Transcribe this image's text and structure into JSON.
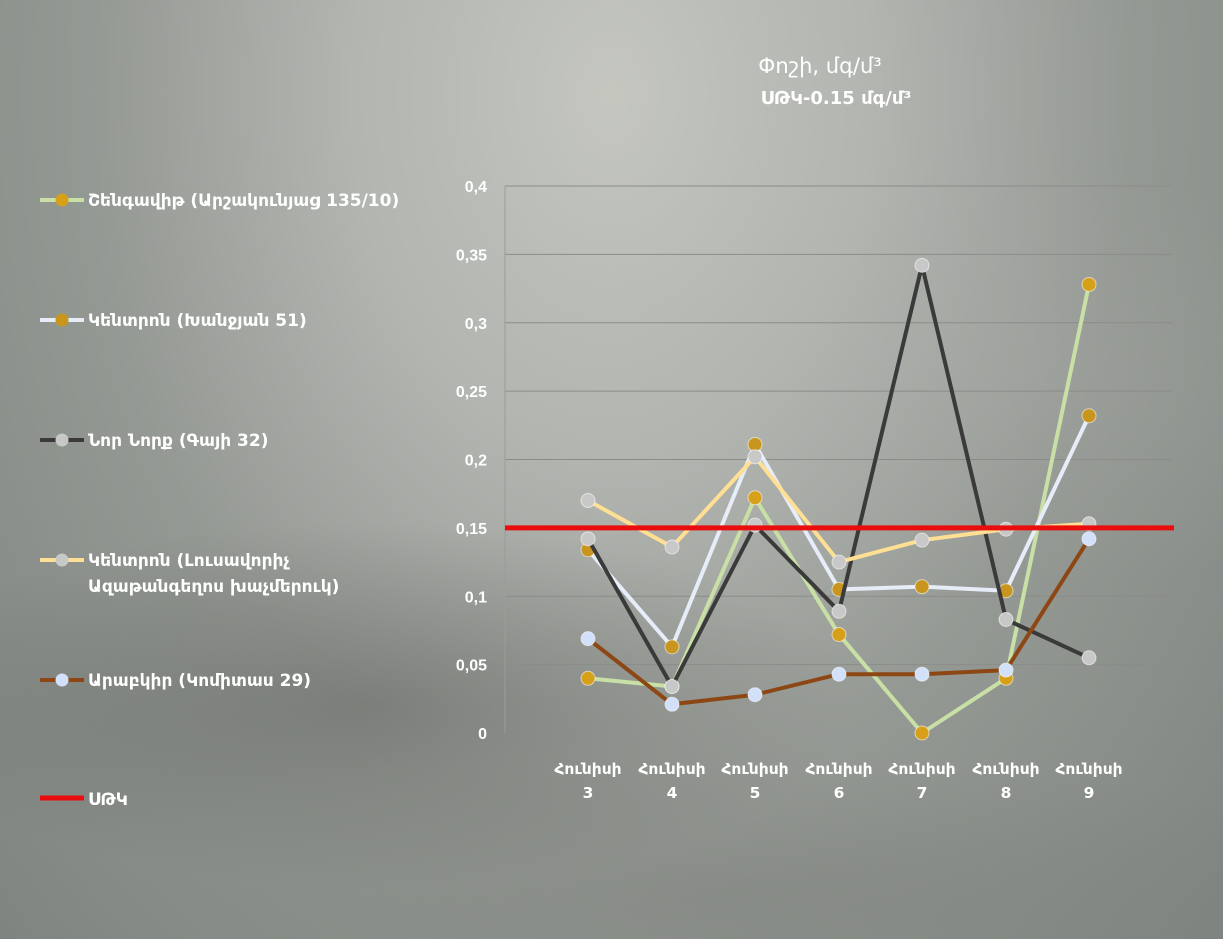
{
  "chart_data": {
    "type": "line",
    "title": "Փոշի, մգ/մ³",
    "subtitle": "ՍԹԿ-0.15 մգ/մ³",
    "xlabel": "",
    "ylabel": "",
    "ylim": [
      0,
      0.4
    ],
    "yticks": [
      "0",
      "0,05",
      "0,1",
      "0,15",
      "0,2",
      "0,25",
      "0,3",
      "0,35",
      "0,4"
    ],
    "ytick_values": [
      0,
      0.05,
      0.1,
      0.15,
      0.2,
      0.25,
      0.3,
      0.35,
      0.4
    ],
    "categories": [
      {
        "month": "Հունիսի",
        "day": "3"
      },
      {
        "month": "Հունիսի",
        "day": "4"
      },
      {
        "month": "Հունիսի",
        "day": "5"
      },
      {
        "month": "Հունիսի",
        "day": "6"
      },
      {
        "month": "Հունիսի",
        "day": "7"
      },
      {
        "month": "Հունիսի",
        "day": "8"
      },
      {
        "month": "Հունիսի",
        "day": "9"
      }
    ],
    "grid": true,
    "legend_position": "left",
    "series": [
      {
        "name": "Շենգավիթ (Արշակունյաց 135/10)",
        "line_color": "#c8e0a6",
        "marker_color": "#d7a019",
        "values": [
          0.04,
          0.034,
          0.172,
          0.072,
          0.0,
          0.04,
          0.328
        ]
      },
      {
        "name": "Կենտրոն (Խանջյան 51)",
        "line_color": "#e6ecf8",
        "marker_color": "#c8961e",
        "values": [
          0.134,
          0.063,
          0.211,
          0.105,
          0.107,
          0.104,
          0.232
        ]
      },
      {
        "name": "Նոր Նորք (Գայի 32)",
        "line_color": "#3a3a3a",
        "marker_color": "#c8c8c8",
        "values": [
          0.142,
          0.034,
          0.152,
          0.089,
          0.342,
          0.083,
          0.055
        ]
      },
      {
        "name": "Կենտրոն (Լուսավորիչ Ազաթանգեղոս խաչմերուկ)",
        "line_color": "#ffdf94",
        "marker_color": "#c8c8c8",
        "values": [
          0.17,
          0.136,
          0.202,
          0.125,
          0.141,
          0.149,
          0.153
        ]
      },
      {
        "name": "Արաբկիր (Կոմիտաս 29)",
        "line_color": "#8c4714",
        "marker_color": "#d2e0fa",
        "values": [
          0.069,
          0.021,
          0.028,
          0.043,
          0.043,
          0.046,
          0.142
        ]
      }
    ],
    "threshold": {
      "name": "ՍԹԿ",
      "value": 0.15,
      "color": "#ea0d0d"
    }
  }
}
